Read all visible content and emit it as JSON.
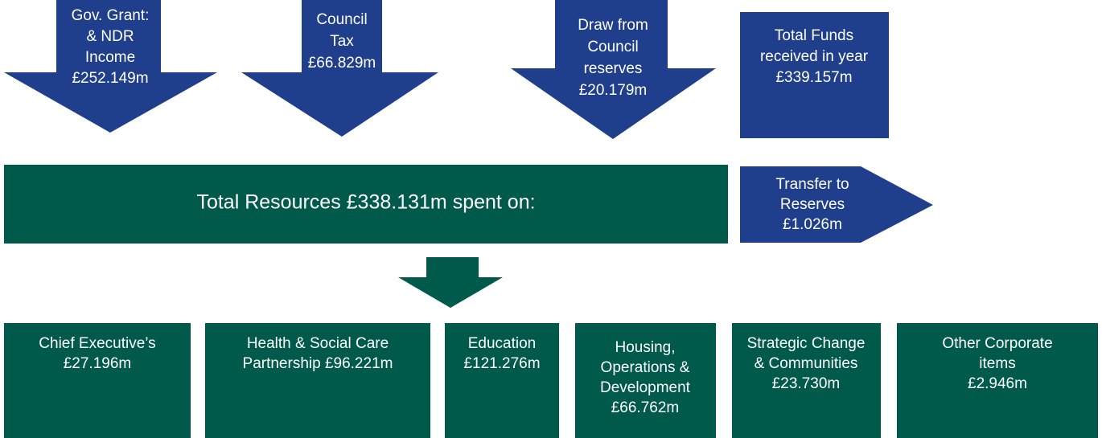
{
  "sources": [
    {
      "lines": [
        "Gov. Grant:",
        "& NDR",
        "Income",
        "£252.149m"
      ]
    },
    {
      "lines": [
        "Council",
        "Tax",
        "£66.829m"
      ]
    },
    {
      "lines": [
        "Draw from",
        "Council",
        "reserves",
        "£20.179m"
      ]
    }
  ],
  "total_funds": {
    "lines": [
      "Total Funds",
      "received in year",
      "£339.157m"
    ]
  },
  "total_resources": "Total Resources £338.131m spent on:",
  "transfer": {
    "lines": [
      "Transfer to",
      "Reserves",
      "£1.026m"
    ]
  },
  "spending": [
    {
      "lines": [
        "Chief Executive’s",
        "£27.196m"
      ]
    },
    {
      "lines": [
        "Health & Social Care",
        "Partnership £96.221m"
      ]
    },
    {
      "lines": [
        "Education",
        "£121.276m"
      ]
    },
    {
      "lines": [
        "Housing,",
        "Operations &",
        "Development",
        "£66.762m"
      ]
    },
    {
      "lines": [
        "Strategic Change",
        "& Communities",
        "£23.730m"
      ]
    },
    {
      "lines": [
        "Other Corporate",
        "items",
        "£2.946m"
      ]
    }
  ]
}
